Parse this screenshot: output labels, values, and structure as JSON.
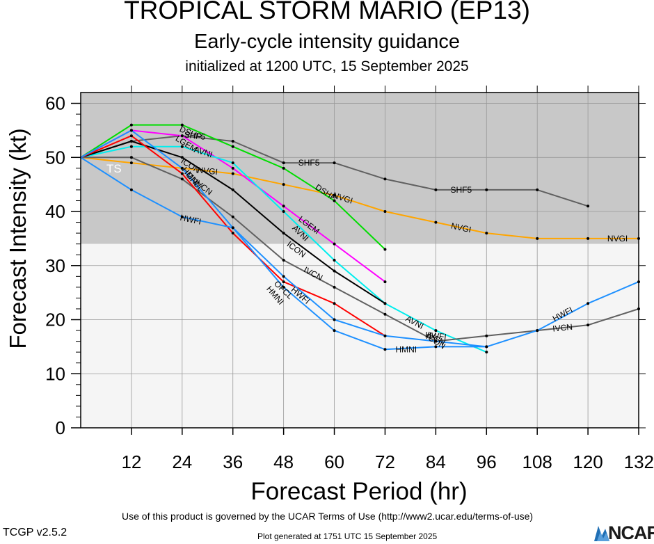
{
  "header": {
    "title": "TROPICAL STORM MARIO (EP13)",
    "subtitle": "Early-cycle intensity guidance",
    "initialized": "initialized at 1200 UTC, 15 September 2025"
  },
  "footer": {
    "terms": "Use of this product is governed by the UCAR Terms of Use (http://www2.ucar.edu/terms-of-use)",
    "version": "TCGP v2.5.2",
    "generated": "Plot generated at 1751 UTC   15 September 2025",
    "logo_text": "NCAR"
  },
  "colors": {
    "ts_band": "#c8c8c8",
    "below_band": "#f5f5f5",
    "axis": "#000000"
  },
  "chart_data": {
    "type": "line",
    "xlabel": "Forecast Period (hr)",
    "ylabel": "Forecast Intensity (kt)",
    "xlim": [
      0,
      132
    ],
    "ylim": [
      0,
      62
    ],
    "xticks": [
      12,
      24,
      36,
      48,
      60,
      72,
      84,
      96,
      108,
      120,
      132
    ],
    "yticks": [
      0,
      10,
      20,
      30,
      40,
      50,
      60
    ],
    "bands": [
      {
        "label": "TS",
        "from": 34,
        "to": 62,
        "color": "#c8c8c8"
      },
      {
        "label": "",
        "from": 0,
        "to": 34,
        "color": "#f5f5f5"
      }
    ],
    "series": [
      {
        "name": "SHF5",
        "color": "#606060",
        "x": [
          0,
          12,
          24,
          36,
          48,
          60,
          72,
          84,
          96,
          108,
          120
        ],
        "y": [
          50,
          53,
          54,
          53,
          49,
          49,
          46,
          44,
          44,
          44,
          41
        ]
      },
      {
        "name": "NVGI",
        "color": "#ffa500",
        "x": [
          0,
          12,
          24,
          36,
          48,
          60,
          72,
          84,
          96,
          108,
          120,
          132
        ],
        "y": [
          50,
          49,
          48,
          47,
          45,
          43,
          40,
          38,
          36,
          35,
          35,
          35
        ]
      },
      {
        "name": "DSHP",
        "color": "#00dd00",
        "x": [
          0,
          12,
          24,
          36,
          48,
          60,
          72
        ],
        "y": [
          50,
          56,
          56,
          52,
          48,
          42,
          33
        ]
      },
      {
        "name": "LGEM",
        "color": "#ff00ff",
        "x": [
          0,
          12,
          24,
          36,
          48,
          60,
          72
        ],
        "y": [
          50,
          55,
          54,
          48,
          41,
          34,
          27
        ]
      },
      {
        "name": "AVNI",
        "color": "#00eeee",
        "x": [
          0,
          12,
          24,
          36,
          48,
          60,
          72,
          84,
          96
        ],
        "y": [
          50,
          52,
          52,
          49,
          40,
          31,
          23,
          18,
          14
        ]
      },
      {
        "name": "ICON",
        "color": "#000000",
        "x": [
          0,
          12,
          24,
          36,
          48,
          60,
          72
        ],
        "y": [
          50,
          53,
          50,
          44,
          36,
          29,
          23
        ]
      },
      {
        "name": "IVCN",
        "color": "#606060",
        "x": [
          0,
          12,
          24,
          36,
          48,
          60,
          72,
          84,
          96,
          108,
          120,
          132
        ],
        "y": [
          50,
          50,
          46,
          39,
          31,
          26,
          21,
          16,
          17,
          18,
          19,
          22
        ]
      },
      {
        "name": "OFCL",
        "color": "#ff0000",
        "x": [
          0,
          12,
          24,
          36,
          48,
          60,
          72
        ],
        "y": [
          50,
          54,
          47,
          36,
          27,
          23,
          17
        ]
      },
      {
        "name": "HMNI",
        "color": "#1e90ff",
        "x": [
          0,
          12,
          24,
          36,
          48,
          60,
          72,
          84,
          96
        ],
        "y": [
          50,
          55,
          48,
          37,
          26,
          18,
          14.5,
          15,
          15
        ]
      },
      {
        "name": "HWFI",
        "color": "#1e90ff",
        "x": [
          0,
          12,
          24,
          36,
          48,
          60,
          72,
          84,
          96,
          108,
          120,
          132
        ],
        "y": [
          50,
          44,
          39,
          37,
          28,
          20,
          17,
          16,
          15,
          18,
          23,
          27
        ]
      }
    ],
    "labels": [
      {
        "text": "SHF5",
        "series": "SHF5",
        "x": 54,
        "y": 49
      },
      {
        "text": "SHF5",
        "series": "SHF5",
        "x": 90,
        "y": 44
      },
      {
        "text": "SHF5",
        "series": "SHF5",
        "x": 27,
        "y": 54
      },
      {
        "text": "NVGI",
        "series": "NVGI",
        "x": 30,
        "y": 47.5
      },
      {
        "text": "NVGI",
        "series": "NVGI",
        "x": 62,
        "y": 42.5
      },
      {
        "text": "NVGI",
        "series": "NVGI",
        "x": 90,
        "y": 37
      },
      {
        "text": "NVGI",
        "series": "NVGI",
        "x": 127,
        "y": 35
      },
      {
        "text": "DSHP",
        "series": "DSHP",
        "x": 26,
        "y": 54.5
      },
      {
        "text": "DSHP",
        "series": "DSHP",
        "x": 58,
        "y": 43.5
      },
      {
        "text": "LGEM",
        "series": "LGEM",
        "x": 25,
        "y": 52.5
      },
      {
        "text": "LGEM",
        "series": "LGEM",
        "x": 54,
        "y": 37.5
      },
      {
        "text": "AVNI",
        "series": "AVNI",
        "x": 29,
        "y": 51
      },
      {
        "text": "AVNI",
        "series": "AVNI",
        "x": 52,
        "y": 36
      },
      {
        "text": "AVNI",
        "series": "AVNI",
        "x": 79,
        "y": 19.5
      },
      {
        "text": "ICON",
        "series": "ICON",
        "x": 26,
        "y": 48.5
      },
      {
        "text": "ICON",
        "series": "ICON",
        "x": 51,
        "y": 33
      },
      {
        "text": "ICON",
        "series": "ICON",
        "x": 84,
        "y": 16
      },
      {
        "text": "IVCN",
        "series": "IVCN",
        "x": 29,
        "y": 44.5
      },
      {
        "text": "IVCN",
        "series": "IVCN",
        "x": 55,
        "y": 28.5
      },
      {
        "text": "IVCN",
        "series": "IVCN",
        "x": 84,
        "y": 16.5
      },
      {
        "text": "IVCN",
        "series": "IVCN",
        "x": 114,
        "y": 18.5
      },
      {
        "text": "OFCL",
        "series": "OFCL",
        "x": 27,
        "y": 45.5
      },
      {
        "text": "OFCL",
        "series": "OFCL",
        "x": 48,
        "y": 25.5
      },
      {
        "text": "HMNI",
        "series": "HMNI",
        "x": 26,
        "y": 46.5
      },
      {
        "text": "HMNI",
        "series": "HMNI",
        "x": 46,
        "y": 24.5
      },
      {
        "text": "HMNI",
        "series": "HMNI",
        "x": 77,
        "y": 14.5
      },
      {
        "text": "HWFI",
        "series": "HWFI",
        "x": 26,
        "y": 38.5
      },
      {
        "text": "HWFI",
        "series": "HWFI",
        "x": 52,
        "y": 24.5
      },
      {
        "text": "HWFI",
        "series": "HWFI",
        "x": 84,
        "y": 17
      },
      {
        "text": "HWFI",
        "series": "HWFI",
        "x": 114,
        "y": 21
      }
    ]
  }
}
